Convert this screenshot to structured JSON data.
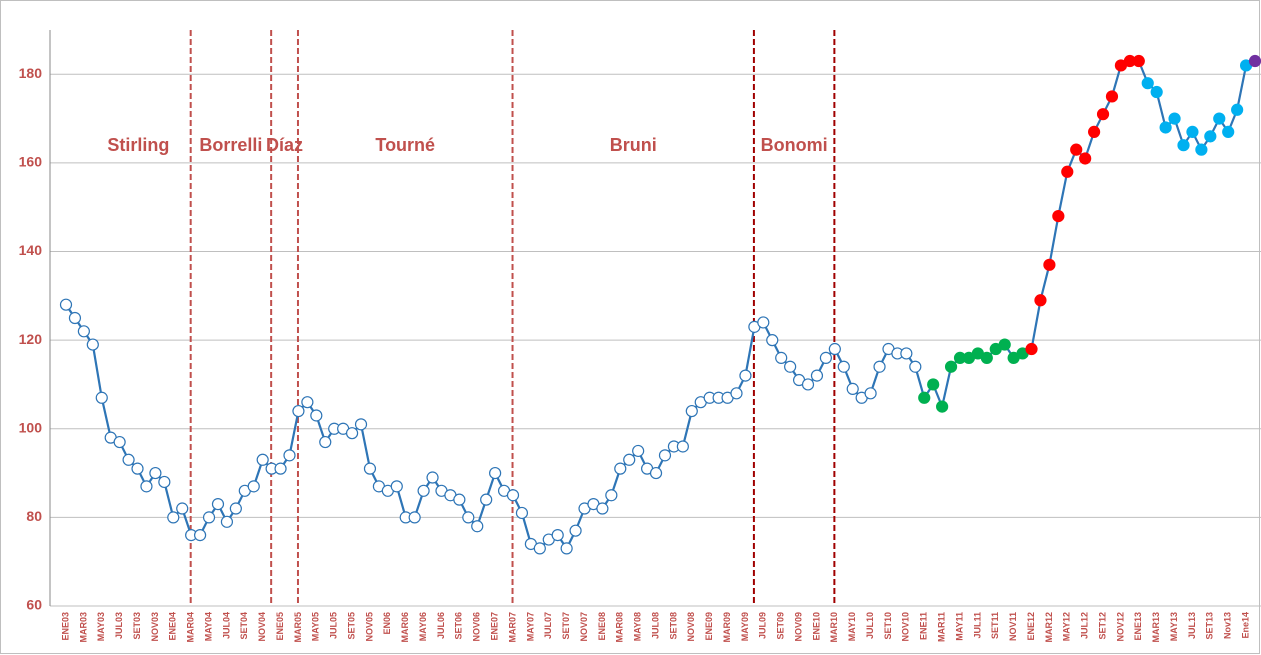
{
  "chart_data": {
    "type": "line",
    "categories": [
      "ENE03",
      null,
      "MAR03",
      null,
      "MAY03",
      null,
      "JUL03",
      null,
      "SET03",
      null,
      "NOV03",
      null,
      "ENE04",
      null,
      "MAR04",
      null,
      "MAY04",
      null,
      "JUL04",
      null,
      "SET04",
      null,
      "NOV04",
      null,
      "ENE05",
      null,
      "MAR05",
      null,
      "MAY05",
      null,
      "JUL05",
      null,
      "SET05",
      null,
      "NOV05",
      null,
      "EN06",
      null,
      "MAR06",
      null,
      "MAY06",
      null,
      "JUL06",
      null,
      "SET06",
      null,
      "NOV06",
      null,
      "ENE07",
      null,
      "MAR07",
      null,
      "MAY07",
      null,
      "JUL07",
      null,
      "SET07",
      null,
      "NOV07",
      null,
      "ENE08",
      null,
      "MAR08",
      null,
      "MAY08",
      null,
      "JUL08",
      null,
      "SET08",
      null,
      "NOV08",
      null,
      "ENE09",
      null,
      "MAR09",
      null,
      "MAY09",
      null,
      "JUL09",
      null,
      "SET09",
      null,
      "NOV09",
      null,
      "ENE10",
      null,
      "MAR10",
      null,
      "MAY10",
      null,
      "JUL10",
      null,
      "SET10",
      null,
      "NOV10",
      null,
      "ENE11",
      null,
      "MAR11",
      null,
      "MAY11",
      null,
      "JUL11",
      null,
      "SET11",
      null,
      "NOV11",
      null,
      "ENE12",
      null,
      "MAR12",
      null,
      "MAY12",
      null,
      "JUL12",
      null,
      "SET12",
      null,
      "NOV12",
      null,
      "ENE13",
      null,
      "MAR13",
      null,
      "MAY13",
      null,
      "JUL13",
      null,
      "SET13",
      null,
      "Nov13",
      null,
      "Ene14",
      null
    ],
    "values": [
      128,
      125,
      122,
      119,
      107,
      98,
      97,
      93,
      91,
      87,
      90,
      88,
      80,
      82,
      76,
      76,
      80,
      83,
      79,
      82,
      86,
      87,
      93,
      91,
      91,
      94,
      104,
      106,
      103,
      97,
      100,
      100,
      99,
      101,
      91,
      87,
      86,
      87,
      80,
      80,
      86,
      89,
      86,
      85,
      84,
      80,
      78,
      84,
      90,
      86,
      85,
      81,
      74,
      73,
      75,
      76,
      73,
      77,
      82,
      83,
      82,
      85,
      91,
      93,
      95,
      91,
      90,
      94,
      96,
      96,
      104,
      106,
      107,
      107,
      107,
      108,
      112,
      123,
      124,
      120,
      116,
      114,
      111,
      110,
      112,
      116,
      118,
      114,
      109,
      107,
      108,
      114,
      118,
      117,
      117,
      114,
      107,
      110,
      105,
      114,
      116,
      116,
      117,
      116,
      118,
      119,
      116,
      117,
      118,
      129,
      137,
      148,
      158,
      163,
      161,
      167,
      171,
      175,
      182,
      183,
      183,
      178,
      176,
      168,
      170,
      164,
      167,
      163,
      166,
      170,
      167,
      172,
      182,
      183
    ],
    "color": "#2e75b6",
    "marker_colors": [
      "#ffffff",
      "#ffffff",
      "#ffffff",
      "#ffffff",
      "#ffffff",
      "#ffffff",
      "#ffffff",
      "#ffffff",
      "#ffffff",
      "#ffffff",
      "#ffffff",
      "#ffffff",
      "#ffffff",
      "#ffffff",
      "#ffffff",
      "#ffffff",
      "#ffffff",
      "#ffffff",
      "#ffffff",
      "#ffffff",
      "#ffffff",
      "#ffffff",
      "#ffffff",
      "#ffffff",
      "#ffffff",
      "#ffffff",
      "#ffffff",
      "#ffffff",
      "#ffffff",
      "#ffffff",
      "#ffffff",
      "#ffffff",
      "#ffffff",
      "#ffffff",
      "#ffffff",
      "#ffffff",
      "#ffffff",
      "#ffffff",
      "#ffffff",
      "#ffffff",
      "#ffffff",
      "#ffffff",
      "#ffffff",
      "#ffffff",
      "#ffffff",
      "#ffffff",
      "#ffffff",
      "#ffffff",
      "#ffffff",
      "#ffffff",
      "#ffffff",
      "#ffffff",
      "#ffffff",
      "#ffffff",
      "#ffffff",
      "#ffffff",
      "#ffffff",
      "#ffffff",
      "#ffffff",
      "#ffffff",
      "#ffffff",
      "#ffffff",
      "#ffffff",
      "#ffffff",
      "#ffffff",
      "#ffffff",
      "#ffffff",
      "#ffffff",
      "#ffffff",
      "#ffffff",
      "#ffffff",
      "#ffffff",
      "#ffffff",
      "#ffffff",
      "#ffffff",
      "#ffffff",
      "#ffffff",
      "#ffffff",
      "#ffffff",
      "#ffffff",
      "#ffffff",
      "#ffffff",
      "#ffffff",
      "#ffffff",
      "#ffffff",
      "#ffffff",
      "#ffffff",
      "#ffffff",
      "#ffffff",
      "#ffffff",
      "#ffffff",
      "#ffffff",
      "#ffffff",
      "#ffffff",
      "#ffffff",
      "#ffffff",
      "#00b050",
      "#00b050",
      "#00b050",
      "#00b050",
      "#00b050",
      "#00b050",
      "#00b050",
      "#00b050",
      "#00b050",
      "#00b050",
      "#00b050",
      "#00b050",
      "#ff0000",
      "#ff0000",
      "#ff0000",
      "#ff0000",
      "#ff0000",
      "#ff0000",
      "#ff0000",
      "#ff0000",
      "#ff0000",
      "#ff0000",
      "#ff0000",
      "#ff0000",
      "#ff0000",
      "#00b0f0",
      "#00b0f0",
      "#00b0f0",
      "#00b0f0",
      "#00b0f0",
      "#00b0f0",
      "#00b0f0",
      "#00b0f0",
      "#00b0f0",
      "#00b0f0",
      "#00b0f0",
      "#00b0f0",
      "#7030a0"
    ],
    "ylim": [
      60,
      190
    ],
    "yticks": [
      60,
      80,
      100,
      120,
      140,
      160,
      180
    ],
    "grid": true,
    "periods": [
      "Stirling",
      "Borrelli",
      "Díaz",
      "Tourné",
      "Bruni",
      "Bonomi"
    ],
    "dividers": [
      {
        "at": 14,
        "color": "#c0504d"
      },
      {
        "at": 23,
        "color": "#c0504d"
      },
      {
        "at": 26,
        "color": "#c0504d"
      },
      {
        "at": 50,
        "color": "#c0504d"
      },
      {
        "at": 77,
        "color": "#a00000"
      },
      {
        "at": 86,
        "color": "#a00000"
      }
    ]
  }
}
